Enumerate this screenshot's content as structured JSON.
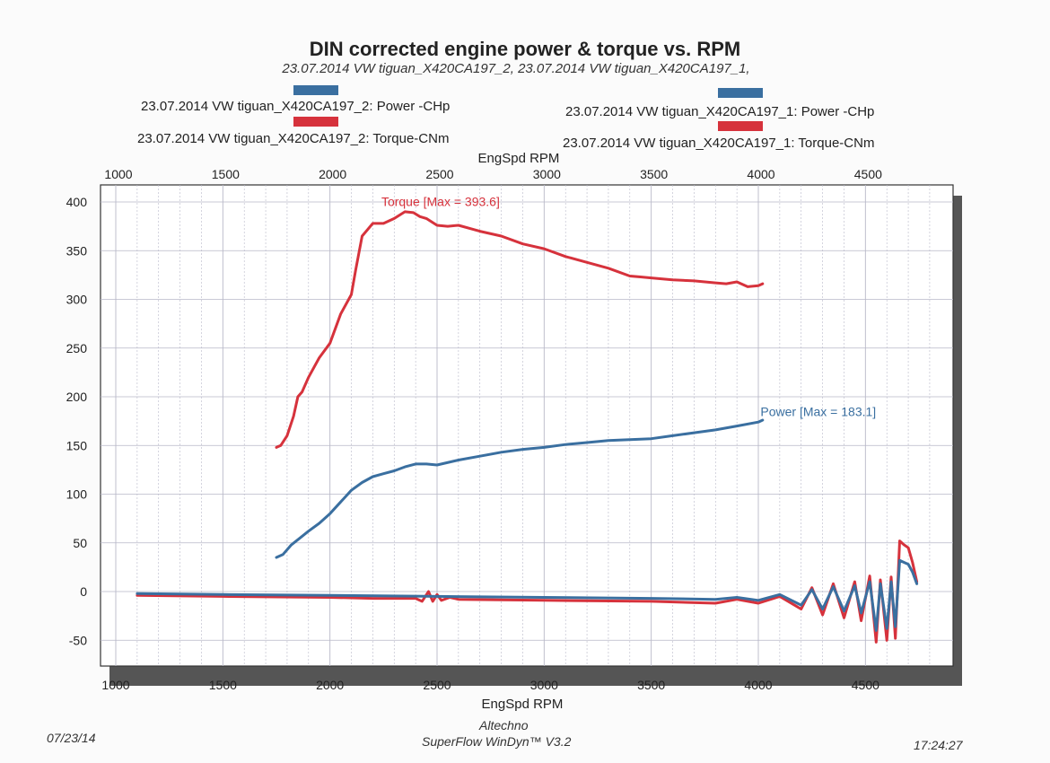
{
  "title": "DIN corrected engine power & torque vs. RPM",
  "subtitle": "23.07.2014 VW tiguan_X420CA197_2, 23.07.2014 VW tiguan_X420CA197_1,",
  "legend": {
    "left_power": "23.07.2014 VW tiguan_X420CA197_2: Power -CHp",
    "left_torque": "23.07.2014 VW tiguan_X420CA197_2: Torque-CNm",
    "right_power": "23.07.2014 VW tiguan_X420CA197_1: Power -CHp",
    "right_torque": "23.07.2014 VW tiguan_X420CA197_1: Torque-CNm"
  },
  "colors": {
    "power": "#3a6fa0",
    "torque": "#d6323c",
    "grid": "#b8b8c8",
    "shadow": "#555555"
  },
  "footer": {
    "date": "07/23/14",
    "company": "Altechno",
    "software": "SuperFlow WinDyn™ V3.2",
    "time": "17:24:27"
  },
  "chart_data": {
    "type": "line",
    "title": "DIN corrected engine power & torque vs. RPM",
    "xlabel": "EngSpd RPM",
    "x2label": "EngSpd RPM",
    "ylabel": "",
    "xlim": [
      1000,
      4850
    ],
    "ylim": [
      -60,
      410
    ],
    "xticks": [
      1000,
      1500,
      2000,
      2500,
      3000,
      3500,
      4000,
      4500
    ],
    "x2ticks": [
      1000,
      1500,
      2000,
      2500,
      3000,
      3500,
      4000,
      4500
    ],
    "yticks": [
      400,
      350,
      300,
      250,
      200,
      150,
      100,
      50,
      0,
      -50
    ],
    "grid": true,
    "annotations": [
      {
        "text": "Torque [Max = 393.6]",
        "series": "torque",
        "x": 2240,
        "y": 396
      },
      {
        "text": "Power  [Max = 183.1]",
        "series": "power",
        "x": 4010,
        "y": 180
      }
    ],
    "series": [
      {
        "name": "23.07.2014 VW tiguan_X420CA197_2: Torque-CNm",
        "color": "#d6323c",
        "x": [
          1750,
          1770,
          1800,
          1830,
          1850,
          1870,
          1900,
          1950,
          2000,
          2050,
          2100,
          2120,
          2150,
          2200,
          2250,
          2300,
          2350,
          2390,
          2420,
          2450,
          2500,
          2550,
          2600,
          2700,
          2800,
          2900,
          3000,
          3100,
          3200,
          3300,
          3400,
          3450,
          3500,
          3600,
          3700,
          3800,
          3850,
          3900,
          3950,
          4000,
          4020
        ],
        "y": [
          148,
          150,
          160,
          180,
          200,
          205,
          220,
          240,
          255,
          285,
          305,
          330,
          365,
          378,
          378,
          383,
          390,
          389,
          385,
          383,
          376,
          375,
          376,
          370,
          365,
          357,
          352,
          344,
          338,
          332,
          324,
          323,
          322,
          320,
          319,
          317,
          316,
          318,
          313,
          314,
          316
        ]
      },
      {
        "name": "23.07.2014 VW tiguan_X420CA197_2: Power -CHp",
        "color": "#3a6fa0",
        "x": [
          1750,
          1780,
          1820,
          1860,
          1900,
          1950,
          2000,
          2050,
          2100,
          2150,
          2200,
          2250,
          2300,
          2350,
          2400,
          2450,
          2500,
          2600,
          2700,
          2800,
          2900,
          3000,
          3100,
          3200,
          3300,
          3400,
          3500,
          3600,
          3700,
          3800,
          3900,
          4000,
          4020
        ],
        "y": [
          35,
          38,
          48,
          55,
          62,
          70,
          80,
          92,
          104,
          112,
          118,
          121,
          124,
          128,
          131,
          131,
          130,
          135,
          139,
          143,
          146,
          148,
          151,
          153,
          155,
          156,
          157,
          160,
          163,
          166,
          170,
          174,
          176
        ]
      },
      {
        "name": "23.07.2014 VW tiguan_X420CA197_1: Torque-CNm",
        "color": "#d6323c",
        "x": [
          1100,
          1500,
          2000,
          2200,
          2400,
          2430,
          2460,
          2480,
          2500,
          2520,
          2560,
          2600,
          3000,
          3500,
          3800,
          3900,
          4000,
          4100,
          4200,
          4250,
          4300,
          4350,
          4400,
          4450,
          4480,
          4520,
          4550,
          4570,
          4600,
          4620,
          4640,
          4660,
          4680,
          4700,
          4720,
          4740
        ],
        "y": [
          -4,
          -5,
          -6,
          -7,
          -7,
          -10,
          0,
          -10,
          -3,
          -9,
          -6,
          -8,
          -9,
          -10,
          -12,
          -8,
          -12,
          -5,
          -18,
          4,
          -24,
          8,
          -27,
          10,
          -30,
          16,
          -52,
          12,
          -50,
          15,
          -48,
          52,
          48,
          45,
          30,
          10
        ]
      },
      {
        "name": "23.07.2014 VW tiguan_X420CA197_1: Power -CHp",
        "color": "#3a6fa0",
        "x": [
          1100,
          1500,
          2000,
          2500,
          3000,
          3500,
          3800,
          3900,
          4000,
          4100,
          4200,
          4250,
          4300,
          4350,
          4400,
          4450,
          4480,
          4520,
          4550,
          4570,
          4600,
          4620,
          4640,
          4660,
          4680,
          4700,
          4720,
          4740
        ],
        "y": [
          -2,
          -3,
          -4,
          -5,
          -6,
          -7,
          -8,
          -6,
          -9,
          -3,
          -14,
          2,
          -18,
          5,
          -20,
          6,
          -22,
          10,
          -40,
          8,
          -38,
          10,
          -36,
          32,
          30,
          28,
          20,
          8
        ]
      }
    ]
  }
}
